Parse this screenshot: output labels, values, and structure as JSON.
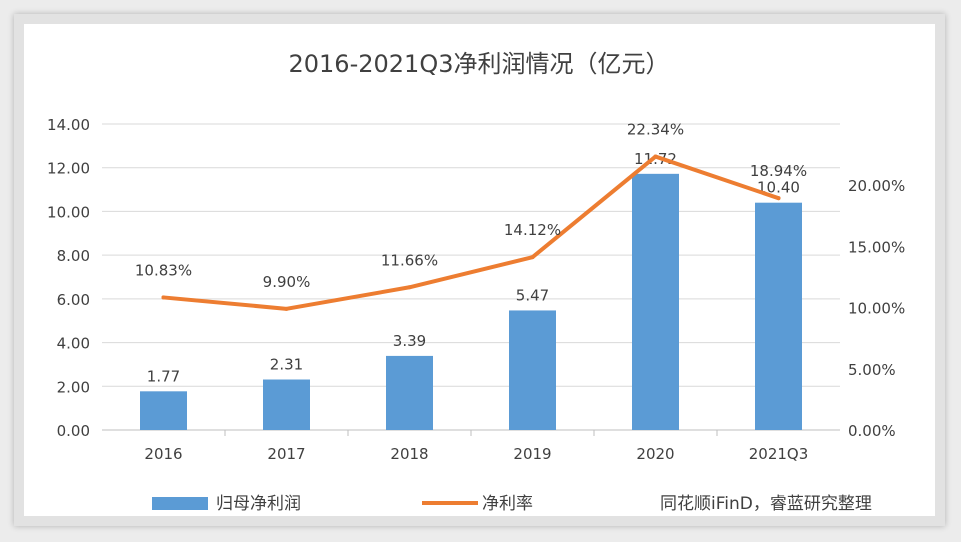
{
  "chart_data": {
    "type": "bar+line",
    "title": "2016-2021Q3净利润情况（亿元）",
    "categories": [
      "2016",
      "2017",
      "2018",
      "2019",
      "2020",
      "2021Q3"
    ],
    "series": [
      {
        "name": "归母净利润",
        "type": "bar",
        "axis": "left",
        "values": [
          1.77,
          2.31,
          3.39,
          5.47,
          11.72,
          10.4
        ],
        "labels": [
          "1.77",
          "2.31",
          "3.39",
          "5.47",
          "11.72",
          "10.40"
        ],
        "color": "#5b9bd5"
      },
      {
        "name": "净利率",
        "type": "line",
        "axis": "right",
        "values": [
          10.83,
          9.9,
          11.66,
          14.12,
          22.34,
          18.94
        ],
        "labels": [
          "10.83%",
          "9.90%",
          "11.66%",
          "14.12%",
          "22.34%",
          "18.94%"
        ],
        "color": "#ed7d31"
      }
    ],
    "y_left": {
      "min": 0,
      "max": 14,
      "ticks": [
        0,
        2,
        4,
        6,
        8,
        10,
        12,
        14
      ],
      "tick_labels": [
        "0.00",
        "2.00",
        "4.00",
        "6.00",
        "8.00",
        "10.00",
        "12.00",
        "14.00"
      ]
    },
    "y_right": {
      "min": 0,
      "max": 25,
      "ticks": [
        0,
        5,
        10,
        15,
        20
      ],
      "tick_labels": [
        "0.00%",
        "5.00%",
        "10.00%",
        "15.00%",
        "20.00%"
      ]
    },
    "grid": true,
    "legend_position": "bottom",
    "source": "同花顺iFinD，睿蓝研究整理"
  }
}
